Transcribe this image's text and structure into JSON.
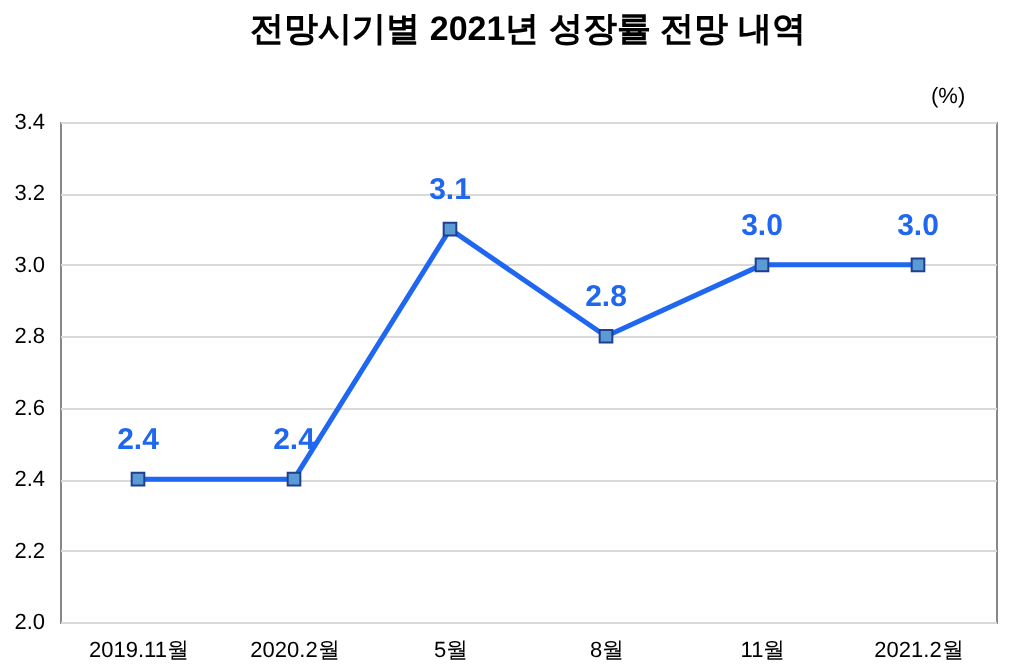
{
  "chart_data": {
    "type": "line",
    "title": "전망시기별 2021년 성장률 전망 내역",
    "ylabel": "(%)",
    "categories": [
      "2019.11월",
      "2020.2월",
      "5월",
      "8월",
      "11월",
      "2021.2월"
    ],
    "series": [
      {
        "color": "#1f66f0",
        "values": [
          2.4,
          2.4,
          3.1,
          2.8,
          3.0,
          3.0
        ],
        "value_labels": [
          "2.4",
          "2.4",
          "3.1",
          "2.8",
          "3.0",
          "3.0"
        ]
      }
    ],
    "ylim": [
      2,
      3.4
    ],
    "yticks": [
      {
        "value": 2,
        "label": "2.0"
      },
      2.2,
      2.4,
      2.6,
      2.8,
      {
        "value": 3,
        "label": "3.0"
      },
      3.2,
      3.4
    ],
    "grid": "y",
    "marker": "square",
    "line_style": "solid"
  }
}
